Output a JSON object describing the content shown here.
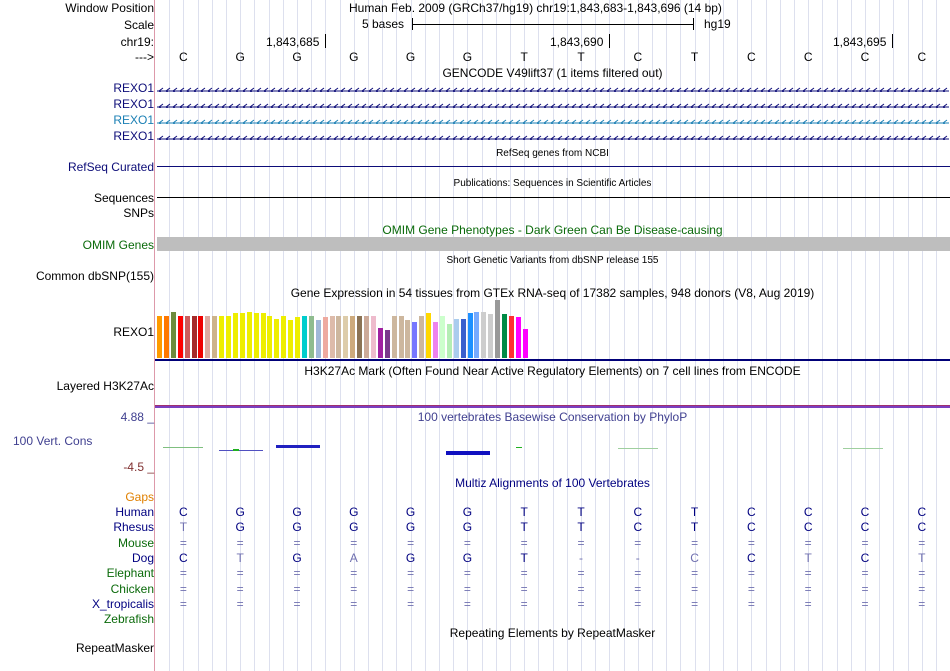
{
  "header": {
    "window_position_label": "Window Position",
    "window_position_value": "Human Feb. 2009 (GRCh37/hg19)   chr19:1,843,683-1,843,696 (14 bp)",
    "scale_label": "Scale",
    "scale_value": "5 bases",
    "scale_db": "hg19",
    "chrom_label": "chr19:",
    "coords": [
      "1,843,685",
      "1,843,690",
      "1,843,695"
    ],
    "strand_label": "--->",
    "bases": [
      "C",
      "G",
      "G",
      "G",
      "G",
      "G",
      "T",
      "T",
      "C",
      "T",
      "C",
      "C",
      "C",
      "C"
    ]
  },
  "tracks": {
    "gencode": {
      "title": "GENCODE V49lift37 (1 items filtered out)",
      "items": [
        {
          "label": "REXO1",
          "color": "#0c0c78"
        },
        {
          "label": "REXO1",
          "color": "#0c0c78"
        },
        {
          "label": "REXO1",
          "color": "#1a7fb4"
        },
        {
          "label": "REXO1",
          "color": "#0c0c78"
        }
      ]
    },
    "refseq": {
      "title": "RefSeq genes from NCBI",
      "label": "RefSeq Curated",
      "color": "#0c0c78"
    },
    "publications": {
      "title": "Publications: Sequences in Scientific Articles",
      "label": "Sequences"
    },
    "snps_label": "SNPs",
    "omim": {
      "title": "OMIM Gene Phenotypes - Dark Green Can Be Disease-causing",
      "label": "OMIM Genes",
      "color": "#0a6a0a"
    },
    "dbsnp": {
      "title": "Short Genetic Variants from dbSNP release 155",
      "label": "Common dbSNP(155)"
    },
    "gtex": {
      "title": "Gene Expression in 54 tissues from GTEx RNA-seq of 17382 samples, 948 donors (V8, Aug 2019)",
      "label": "REXO1",
      "relative_heights": [
        0.72,
        0.72,
        0.8,
        0.72,
        0.72,
        0.72,
        0.72,
        0.72,
        0.72,
        0.72,
        0.72,
        0.78,
        0.78,
        0.8,
        0.78,
        0.78,
        0.72,
        0.68,
        0.72,
        0.66,
        0.7,
        0.72,
        0.72,
        0.66,
        0.7,
        0.72,
        0.72,
        0.72,
        0.72,
        0.72,
        0.72,
        0.72,
        0.52,
        0.48,
        0.72,
        0.72,
        0.66,
        0.62,
        0.72,
        0.78,
        0.62,
        0.72,
        0.58,
        0.68,
        0.68,
        0.78,
        0.8,
        0.8,
        0.76,
        1.0,
        0.76,
        0.72,
        0.7,
        0.5
      ],
      "colors": [
        "#ff9a00",
        "#ff7700",
        "#6e8b3d",
        "#ff0000",
        "#cd5c5c",
        "#a52a2a",
        "#ee0000",
        "#ddaaa0",
        "#cdb38b",
        "#eeee00",
        "#eeee00",
        "#eeee00",
        "#eeee00",
        "#eeee00",
        "#eeee00",
        "#eeee00",
        "#eeee00",
        "#eeee00",
        "#eeee00",
        "#eeee00",
        "#eeee00",
        "#00cdcd",
        "#8fbc8f",
        "#a0b8d8",
        "#eeaaa0",
        "#ddbbaa",
        "#cdb79e",
        "#ddccaa",
        "#cdaa7d",
        "#8b7355",
        "#ccaa99",
        "#eebbcc",
        "#a020a0",
        "#7a378b",
        "#cdb79e",
        "#cdb79e",
        "#cdb79e",
        "#7777ff",
        "#cdb79e",
        "#ffd700",
        "#ee82ee",
        "#ccffcc",
        "#b4eeb4",
        "#aaccee",
        "#3a5fcd",
        "#1e90ff",
        "#77aaff",
        "#cdcdcd",
        "#cdcdcd",
        "#999999",
        "#008b45",
        "#ff3030",
        "#ff00ff",
        "#ff00ff"
      ]
    },
    "h3k27ac": {
      "title": "H3K27Ac Mark (Often Found Near Active Regulatory Elements) on 7 cell lines from ENCODE",
      "label": "Layered H3K27Ac"
    },
    "phylop": {
      "title": "100 vertebrates Basewise Conservation by PhyloP",
      "label": "100 Vert. Cons",
      "ymax": "4.88 _",
      "ymin": "-4.5 _"
    },
    "multiz": {
      "title": "Multiz Alignments of 100 Vertebrates",
      "gaps_label": "Gaps",
      "species": [
        {
          "name": "Human",
          "color": "#000080",
          "seq": [
            "C",
            "G",
            "G",
            "G",
            "G",
            "G",
            "T",
            "T",
            "C",
            "T",
            "C",
            "C",
            "C",
            "C"
          ]
        },
        {
          "name": "Rhesus",
          "color": "#000080",
          "seq": [
            "T",
            "G",
            "G",
            "G",
            "G",
            "G",
            "T",
            "T",
            "C",
            "T",
            "C",
            "C",
            "C",
            "C"
          ]
        },
        {
          "name": "Mouse",
          "color": "#0a6a0a",
          "seq": [
            "=",
            "=",
            "=",
            "=",
            "=",
            "=",
            "=",
            "=",
            "=",
            "=",
            "=",
            "=",
            "=",
            "="
          ]
        },
        {
          "name": "Dog",
          "color": "#000080",
          "seq": [
            "C",
            "T",
            "G",
            "A",
            "G",
            "G",
            "T",
            "-",
            "-",
            "C",
            "C",
            "T",
            "C",
            "T"
          ]
        },
        {
          "name": "Elephant",
          "color": "#0a6a0a",
          "seq": [
            "=",
            "=",
            "=",
            "=",
            "=",
            "=",
            "=",
            "=",
            "=",
            "=",
            "=",
            "=",
            "=",
            "="
          ]
        },
        {
          "name": "Chicken",
          "color": "#0a6a0a",
          "seq": [
            "=",
            "=",
            "=",
            "=",
            "=",
            "=",
            "=",
            "=",
            "=",
            "=",
            "=",
            "=",
            "=",
            "="
          ]
        },
        {
          "name": "X_tropicalis",
          "color": "#000080",
          "seq": [
            "=",
            "=",
            "=",
            "=",
            "=",
            "=",
            "=",
            "=",
            "=",
            "=",
            "=",
            "=",
            "=",
            "="
          ]
        },
        {
          "name": "Zebrafish",
          "color": "#0a6a0a",
          "seq": []
        }
      ]
    },
    "repeatmasker": {
      "title": "Repeating Elements by RepeatMasker",
      "label": "RepeatMasker"
    }
  }
}
